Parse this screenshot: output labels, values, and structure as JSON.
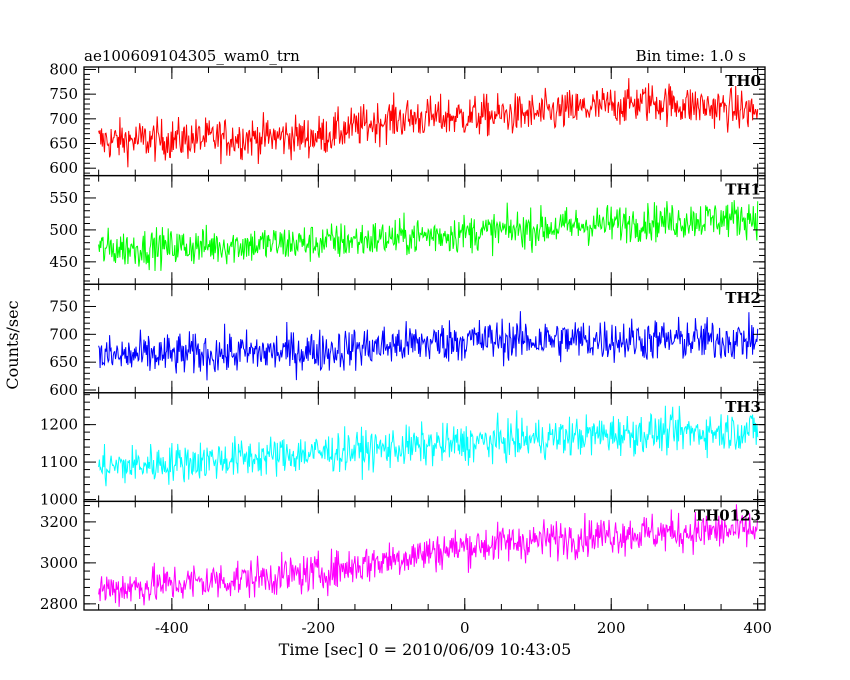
{
  "header": {
    "title": "ae100609104305_wam0_trn",
    "bin_time": "Bin time: 1.0 s"
  },
  "chart_data": {
    "type": "line",
    "x_axis": {
      "label": "Time [sec] 0 = 2010/06/09 10:43:05",
      "range": [
        -520,
        410
      ],
      "ticks": [
        -400,
        -200,
        0,
        200,
        400
      ],
      "data_range": [
        -500,
        400
      ]
    },
    "y_axis_label": "Counts/sec",
    "panels": [
      {
        "name": "TH0",
        "color": "#ff0000",
        "ylim": [
          585,
          805
        ],
        "yticks": [
          600,
          650,
          700,
          750,
          800
        ],
        "trend": [
          [
            -500,
            655
          ],
          [
            -200,
            665
          ],
          [
            -100,
            700
          ],
          [
            100,
            710
          ],
          [
            250,
            735
          ],
          [
            400,
            715
          ]
        ],
        "noise": 35
      },
      {
        "name": "TH1",
        "color": "#00ff00",
        "ylim": [
          415,
          585
        ],
        "yticks": [
          450,
          500,
          550
        ],
        "trend": [
          [
            -500,
            470
          ],
          [
            -200,
            480
          ],
          [
            0,
            495
          ],
          [
            200,
            510
          ],
          [
            400,
            520
          ]
        ],
        "noise": 25
      },
      {
        "name": "TH2",
        "color": "#0000ff",
        "ylim": [
          595,
          790
        ],
        "yticks": [
          600,
          650,
          700,
          750
        ],
        "trend": [
          [
            -500,
            660
          ],
          [
            -200,
            670
          ],
          [
            0,
            690
          ],
          [
            200,
            690
          ],
          [
            400,
            690
          ]
        ],
        "noise": 32
      },
      {
        "name": "TH3",
        "color": "#00ffff",
        "ylim": [
          995,
          1285
        ],
        "yticks": [
          1000,
          1100,
          1200
        ],
        "trend": [
          [
            -500,
            1085
          ],
          [
            -200,
            1125
          ],
          [
            0,
            1150
          ],
          [
            200,
            1175
          ],
          [
            400,
            1185
          ]
        ],
        "noise": 45
      },
      {
        "name": "TH0123",
        "color": "#ff00ff",
        "ylim": [
          2770,
          3300
        ],
        "yticks": [
          2800,
          3000,
          3200
        ],
        "trend": [
          [
            -500,
            2870
          ],
          [
            -200,
            2950
          ],
          [
            -100,
            3020
          ],
          [
            0,
            3080
          ],
          [
            200,
            3140
          ],
          [
            400,
            3160
          ]
        ],
        "noise": 80
      }
    ]
  }
}
